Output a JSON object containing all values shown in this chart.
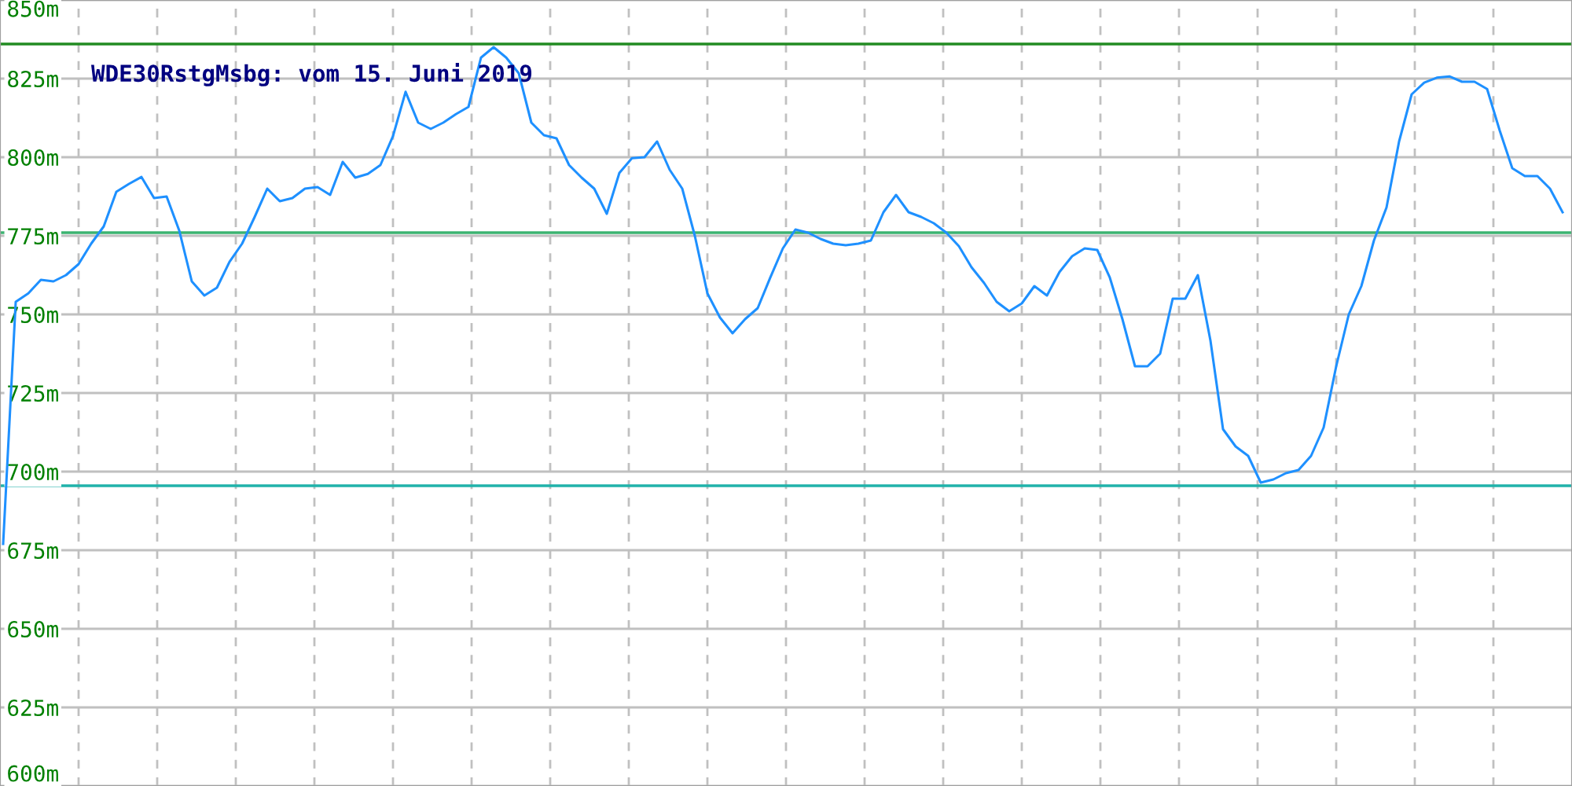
{
  "chart_data": {
    "type": "line",
    "title": "WDE30RstgMsbg: vom 15. Juni 2019",
    "categories": [
      null,
      null,
      null,
      null,
      null,
      null,
      null,
      null,
      null,
      null,
      null,
      null,
      null,
      null,
      null,
      null,
      null,
      null,
      null,
      null,
      null,
      null,
      null,
      null,
      null,
      null,
      null,
      null,
      null,
      null,
      null,
      null,
      null,
      null,
      null,
      null,
      null,
      null,
      null,
      null,
      null,
      null,
      null,
      null,
      null,
      null,
      null,
      null,
      null,
      null,
      null,
      null,
      null,
      null,
      null,
      null,
      null,
      null,
      null,
      null,
      null,
      null,
      null,
      null,
      null,
      null,
      null,
      null,
      null,
      null,
      null,
      null,
      null,
      null,
      null,
      null,
      null,
      null,
      null,
      null,
      null,
      null,
      null,
      null,
      null,
      null,
      null,
      null,
      null,
      null,
      null,
      null,
      null,
      null,
      null,
      null,
      null,
      null,
      null,
      null,
      null,
      null,
      null,
      null,
      null,
      null,
      null,
      null,
      null,
      null,
      null,
      null,
      null,
      null,
      null,
      null,
      null,
      null,
      null,
      null,
      null,
      null,
      null,
      null,
      null
    ],
    "series": [
      {
        "color": "#1e90ff",
        "values": [
          677,
          754,
          756.7,
          761,
          760.5,
          762.5,
          766,
          772.5,
          778,
          789,
          791.5,
          793.7,
          787,
          787.5,
          776.7,
          760.5,
          756,
          758.5,
          766.7,
          772.5,
          781,
          790,
          786,
          787,
          790,
          790.5,
          788,
          798.5,
          793.5,
          794.7,
          797.5,
          806.7,
          820.8,
          811,
          809,
          811,
          813.7,
          816,
          831.7,
          835,
          831.7,
          826.7,
          811,
          807,
          806,
          797.5,
          793.5,
          790,
          782,
          795,
          799.7,
          800,
          805,
          796,
          790,
          775,
          756.7,
          749,
          744,
          748.5,
          752,
          761.7,
          771,
          777,
          776,
          774,
          772.5,
          772,
          772.5,
          773.5,
          782.5,
          788,
          782.5,
          781,
          779,
          776,
          771.7,
          765,
          760,
          754,
          751,
          753.5,
          759,
          756,
          763.5,
          768.5,
          771,
          770.5,
          761.7,
          748.5,
          733.5,
          733.5,
          737.5,
          755,
          755,
          762.5,
          741.7,
          713.5,
          708,
          705,
          696.5,
          697.5,
          699.5,
          700.5,
          705,
          714,
          733.5,
          750,
          759,
          773.5,
          784,
          805,
          820,
          823.7,
          825.3,
          825.7,
          824,
          824,
          821.7,
          808.5,
          796.5,
          794,
          794,
          790,
          782.5
        ]
      }
    ],
    "ylim": [
      600,
      850
    ],
    "yticks": [
      {
        "value": 600,
        "label": "600m"
      },
      {
        "value": 625,
        "label": "625m"
      },
      {
        "value": 650,
        "label": "650m"
      },
      {
        "value": 675,
        "label": "675m"
      },
      {
        "value": 700,
        "label": "700m"
      },
      {
        "value": 725,
        "label": "725m"
      },
      {
        "value": 750,
        "label": "750m"
      },
      {
        "value": 775,
        "label": "775m"
      },
      {
        "value": 800,
        "label": "800m"
      },
      {
        "value": 825,
        "label": "825m"
      },
      {
        "value": 850,
        "label": "850m"
      }
    ],
    "ref_lines": [
      {
        "axis": "y",
        "value": 836,
        "color": "#228b22"
      },
      {
        "axis": "y",
        "value": 776,
        "color": "#3cb371"
      },
      {
        "axis": "y",
        "value": 695.5,
        "color": "#20b2aa"
      }
    ],
    "grid": true,
    "marker": "none",
    "line_style": "solid",
    "tick_labels": "y"
  }
}
